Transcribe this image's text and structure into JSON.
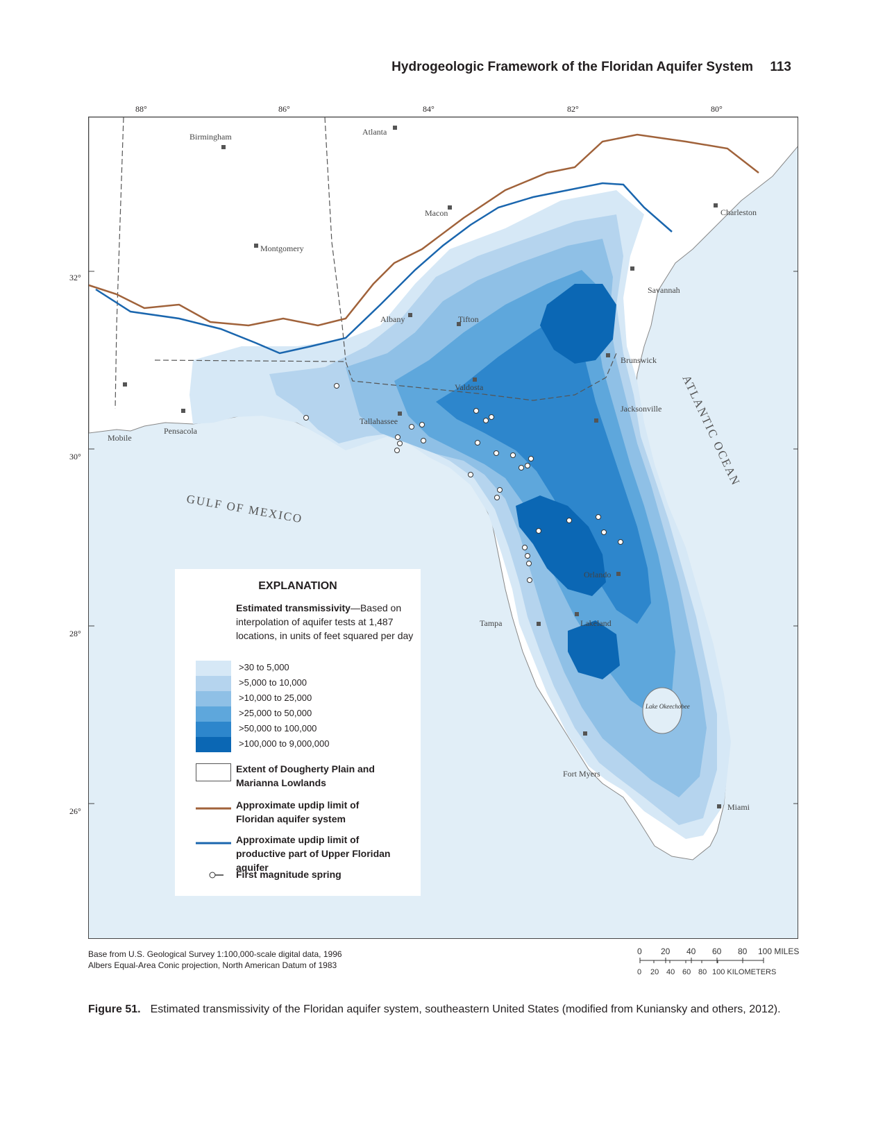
{
  "header": {
    "title": "Hydrogeologic Framework of the Floridan Aquifer System",
    "page_number": "113"
  },
  "map": {
    "longitude_labels": [
      "88°",
      "86°",
      "84°",
      "82°",
      "80°"
    ],
    "latitude_labels": [
      "32°",
      "30°",
      "28°",
      "26°"
    ],
    "cities": [
      "Birmingham",
      "Atlanta",
      "Macon",
      "Charleston",
      "Montgomery",
      "Savannah",
      "Albany",
      "Tifton",
      "Brunswick",
      "Valdosta",
      "Jacksonville",
      "Tallahassee",
      "Mobile",
      "Pensacola",
      "Tampa",
      "Orlando",
      "Lakeland",
      "Fort Myers",
      "Miami"
    ],
    "water_labels": {
      "gulf": "GULF OF MEXICO",
      "atlantic": "ATLANTIC OCEAN",
      "lake": "Lake Okeechobee"
    },
    "colors": {
      "water": "#e1eef7",
      "land": "#ffffff",
      "class1": "#d6e8f6",
      "class2": "#b5d4ee",
      "class3": "#8fc0e6",
      "class4": "#5ea7dc",
      "class5": "#2d86cc",
      "class6": "#0b67b4",
      "updip_floridan": "#a0623a",
      "updip_productive": "#1a66ae"
    }
  },
  "legend": {
    "heading": "EXPLANATION",
    "description_bold": "Estimated transmissivity",
    "description_rest": "—Based on interpolation of aquifer tests at 1,487 locations, in units of feet squared per day",
    "classes": [
      ">30 to 5,000",
      ">5,000 to 10,000",
      ">10,000 to 25,000",
      ">25,000 to 50,000",
      ">50,000 to 100,000",
      ">100,000 to 9,000,000"
    ],
    "dougherty": "Extent of Dougherty Plain and Marianna Lowlands",
    "updip_floridan": "Approximate updip limit of Floridan aquifer system",
    "updip_productive": "Approximate updip limit of productive part of Upper Floridan aquifer",
    "spring": "First magnitude spring"
  },
  "source": {
    "line1": "Base from U.S. Geological Survey 1:100,000-scale digital data, 1996",
    "line2": "Albers Equal-Area Conic projection, North American Datum of 1983"
  },
  "scale": {
    "miles_ticks": [
      "0",
      "20",
      "40",
      "60",
      "80",
      "100 MILES"
    ],
    "km_ticks": [
      "0",
      "20",
      "40",
      "60",
      "80",
      "100 KILOMETERS"
    ]
  },
  "caption": {
    "figure": "Figure 51.",
    "text": "Estimated transmissivity of the Floridan aquifer system, southeastern United States (modified from Kuniansky and others, 2012)."
  }
}
